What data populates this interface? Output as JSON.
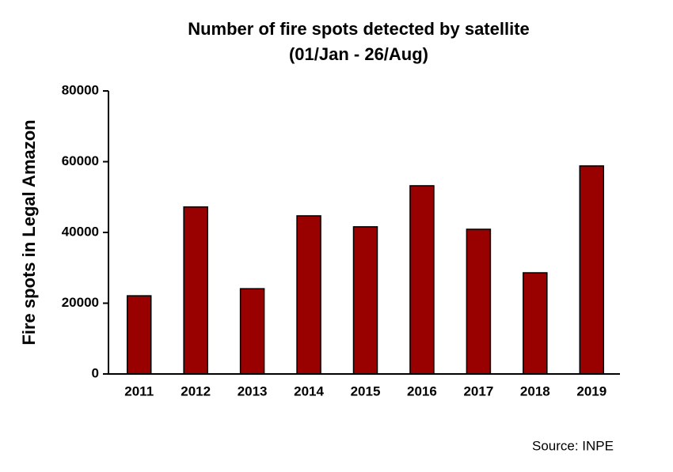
{
  "chart_data": {
    "type": "bar",
    "title": "Number of fire spots detected by satellite",
    "subtitle": "(01/Jan - 26/Aug)",
    "y_label": "Fire spots in Legal  Amazon",
    "source": "Source: INPE",
    "categories": [
      "2011",
      "2012",
      "2013",
      "2014",
      "2015",
      "2016",
      "2017",
      "2018",
      "2019"
    ],
    "values": [
      22100,
      47200,
      24100,
      44700,
      41600,
      53200,
      40900,
      28600,
      58800
    ],
    "color": "#990000",
    "ylim": [
      0,
      80000
    ],
    "yticks": [
      0,
      20000,
      40000,
      60000,
      80000
    ],
    "grid": false
  }
}
